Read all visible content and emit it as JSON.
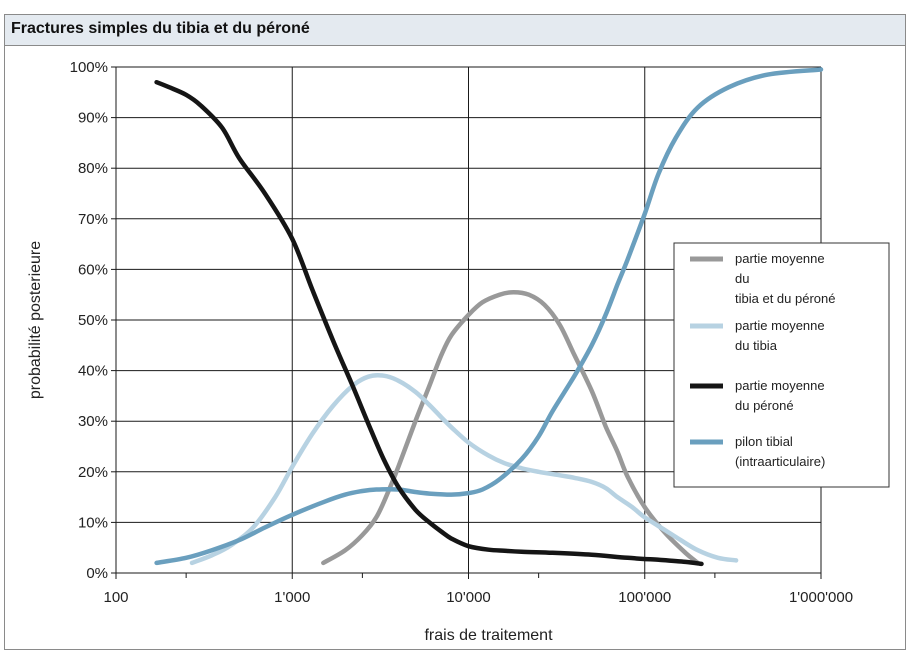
{
  "header": {
    "title": "Fractures simples du tibia et du péroné"
  },
  "chart_data": {
    "type": "line",
    "title": "Fractures simples du tibia et du péroné",
    "xlabel": "frais de traitement",
    "ylabel": "probabilité posterieure",
    "x_scale": "log",
    "xlim": [
      100,
      1000000
    ],
    "ylim": [
      0,
      100
    ],
    "x_ticks": [
      "100",
      "1'000",
      "10'000",
      "100'000",
      "1'000'000"
    ],
    "x_tick_values": [
      100,
      1000,
      10000,
      100000,
      1000000
    ],
    "y_ticks": [
      "0%",
      "10%",
      "20%",
      "30%",
      "40%",
      "50%",
      "60%",
      "70%",
      "80%",
      "90%",
      "100%"
    ],
    "y_tick_values": [
      0,
      10,
      20,
      30,
      40,
      50,
      60,
      70,
      80,
      90,
      100
    ],
    "grid": "vertical lines at decades, horizontal lines at every 10%",
    "legend_position": "right",
    "series": [
      {
        "name": "partie moyenne du tibia et du péroné",
        "legend_lines": [
          "partie moyenne",
          "du",
          "tibia et du péroné"
        ],
        "color": "#999999",
        "x": [
          1500,
          2000,
          2500,
          3000,
          3500,
          4000,
          5000,
          6000,
          7000,
          8000,
          10000,
          12000,
          15000,
          18000,
          22000,
          27000,
          33000,
          40000,
          50000,
          60000,
          70000,
          80000,
          100000,
          130000,
          170000,
          200000
        ],
        "y": [
          2,
          4.5,
          7.5,
          11,
          16,
          21,
          30,
          37,
          43,
          47,
          51,
          53.5,
          55,
          55.5,
          55,
          53,
          49,
          43,
          36,
          29,
          24,
          19,
          13,
          8,
          4,
          2
        ]
      },
      {
        "name": "partie moyenne du tibia",
        "legend_lines": [
          "partie moyenne",
          "du tibia"
        ],
        "color": "#b7d2e2",
        "x": [
          270,
          350,
          450,
          600,
          800,
          1000,
          1300,
          1700,
          2200,
          2700,
          3300,
          4000,
          5000,
          6000,
          7000,
          8000,
          10000,
          13000,
          16000,
          20000,
          25000,
          33000,
          40000,
          50000,
          60000,
          70000,
          85000,
          100000,
          130000,
          160000,
          200000,
          260000,
          330000
        ],
        "y": [
          2,
          3.5,
          5.5,
          9,
          15,
          21,
          27.5,
          33,
          37,
          38.8,
          39,
          38,
          35.8,
          33.2,
          30.8,
          28.8,
          25.8,
          23.2,
          21.7,
          20.7,
          20,
          19.3,
          18.8,
          18,
          16.8,
          15,
          13,
          11,
          8.5,
          6.5,
          4.5,
          3,
          2.5
        ]
      },
      {
        "name": "partie moyenne du péroné",
        "legend_lines": [
          "partie moyenne",
          "du péroné"
        ],
        "color": "#151515",
        "x": [
          170,
          200,
          250,
          300,
          400,
          500,
          700,
          1000,
          1300,
          1700,
          2200,
          2700,
          3300,
          4000,
          5000,
          6000,
          7000,
          8000,
          10000,
          13000,
          16000,
          20000,
          30000,
          50000,
          80000,
          120000,
          170000,
          210000
        ],
        "y": [
          97,
          96,
          94.5,
          92.5,
          88,
          82,
          75,
          66,
          56,
          46,
          37,
          29.5,
          22.5,
          17,
          12.5,
          10,
          8.2,
          6.8,
          5.3,
          4.6,
          4.4,
          4.2,
          4,
          3.6,
          3,
          2.6,
          2.2,
          1.8
        ]
      },
      {
        "name": "pilon tibial (intraarticulaire)",
        "legend_lines": [
          "pilon tibial",
          "(intraarticulaire)"
        ],
        "color": "#6a9fbe",
        "x": [
          170,
          250,
          350,
          500,
          700,
          1000,
          1500,
          2000,
          2500,
          3000,
          4000,
          5000,
          6000,
          8000,
          10000,
          12000,
          15000,
          20000,
          25000,
          30000,
          40000,
          50000,
          60000,
          70000,
          80000,
          100000,
          120000,
          150000,
          200000,
          300000,
          500000,
          1000000
        ],
        "y": [
          2,
          3,
          4.5,
          6.5,
          9,
          11.5,
          14,
          15.5,
          16.2,
          16.5,
          16.5,
          16,
          15.7,
          15.5,
          15.8,
          16.5,
          18.5,
          22.5,
          27,
          32,
          39,
          45,
          51,
          57,
          62,
          71,
          79,
          86,
          92,
          96,
          98.5,
          99.5
        ]
      }
    ]
  }
}
